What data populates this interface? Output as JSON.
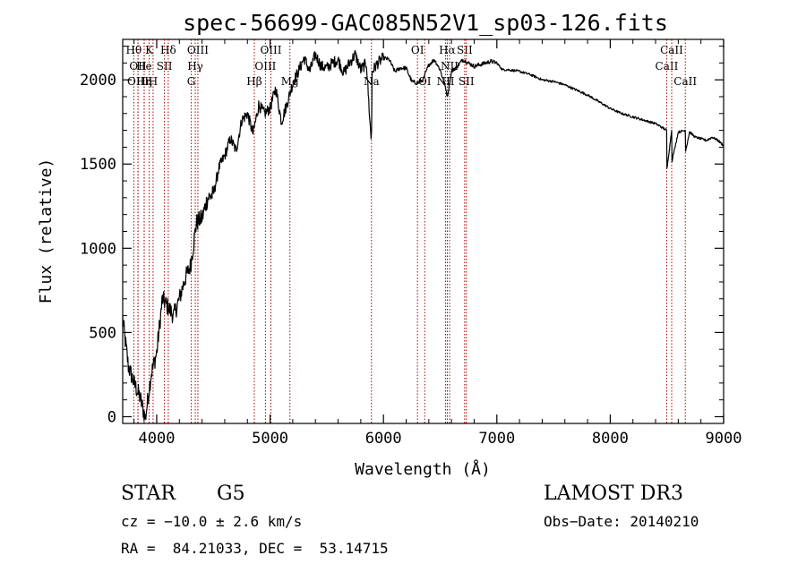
{
  "chart_data": {
    "type": "line",
    "title": "spec-56699-GAC085N52V1_sp03-126.fits",
    "xlabel": "Wavelength (Å)",
    "ylabel": "Flux (relative)",
    "xlim": [
      3700,
      9000
    ],
    "ylim": [
      -40,
      2240
    ],
    "xticks": [
      4000,
      5000,
      6000,
      7000,
      8000,
      9000
    ],
    "yticks": [
      0,
      500,
      1000,
      1500,
      2000
    ],
    "series": [
      {
        "name": "flux",
        "x": [
          3700,
          3750,
          3800,
          3850,
          3900,
          3950,
          4000,
          4050,
          4100,
          4150,
          4200,
          4250,
          4300,
          4350,
          4400,
          4450,
          4500,
          4550,
          4600,
          4650,
          4700,
          4750,
          4800,
          4850,
          4900,
          4950,
          5000,
          5050,
          5100,
          5150,
          5200,
          5250,
          5300,
          5350,
          5400,
          5450,
          5500,
          5550,
          5600,
          5650,
          5700,
          5750,
          5800,
          5850,
          5890,
          5895,
          5900,
          5950,
          6000,
          6050,
          6100,
          6150,
          6200,
          6250,
          6300,
          6350,
          6400,
          6450,
          6500,
          6550,
          6563,
          6600,
          6650,
          6700,
          6750,
          6800,
          6850,
          6900,
          6950,
          7000,
          7050,
          7100,
          7200,
          7300,
          7400,
          7500,
          7600,
          7700,
          7800,
          7900,
          8000,
          8100,
          8200,
          8300,
          8400,
          8450,
          8498,
          8500,
          8542,
          8545,
          8600,
          8662,
          8665,
          8700,
          8750,
          8800,
          8850,
          8900,
          8950,
          9000
        ],
        "y": [
          580,
          300,
          200,
          120,
          -10,
          250,
          380,
          700,
          650,
          600,
          700,
          820,
          900,
          1150,
          1180,
          1300,
          1320,
          1480,
          1550,
          1650,
          1580,
          1760,
          1800,
          1680,
          1850,
          1800,
          1830,
          1950,
          1750,
          1860,
          1980,
          2050,
          2130,
          2050,
          2150,
          2080,
          2070,
          2100,
          2120,
          2040,
          2100,
          2150,
          2060,
          2100,
          1650,
          1700,
          2050,
          2100,
          2130,
          2120,
          2050,
          2070,
          2070,
          1990,
          1980,
          2000,
          2090,
          2120,
          2060,
          1950,
          1900,
          2050,
          2080,
          2120,
          2100,
          2080,
          2090,
          2100,
          2110,
          2100,
          2060,
          2060,
          2050,
          2030,
          2000,
          1990,
          1970,
          1940,
          1910,
          1870,
          1830,
          1800,
          1780,
          1760,
          1740,
          1720,
          1700,
          1470,
          1700,
          1520,
          1690,
          1700,
          1580,
          1690,
          1660,
          1650,
          1640,
          1660,
          1640,
          1610
        ]
      }
    ],
    "lines": [
      {
        "wave": 3798,
        "label": "Hθ",
        "row": 0
      },
      {
        "wave": 3835,
        "label": "OII",
        "row": 1
      },
      {
        "wave": 3835,
        "label": "OIII",
        "row": 2
      },
      {
        "wave": 3889,
        "label": "He",
        "row": 1
      },
      {
        "wave": 3890,
        "label": "Hη",
        "row": 2
      },
      {
        "wave": 3934,
        "label": "K",
        "row": 0
      },
      {
        "wave": 3968,
        "label": "H",
        "row": 2
      },
      {
        "wave": 4068,
        "label": "SII",
        "row": 1
      },
      {
        "wave": 4102,
        "label": "Hδ",
        "row": 0
      },
      {
        "wave": 4305,
        "label": "G",
        "row": 2
      },
      {
        "wave": 4340,
        "label": "Hγ",
        "row": 1
      },
      {
        "wave": 4363,
        "label": "OIII",
        "row": 0
      },
      {
        "wave": 4861,
        "label": "Hβ",
        "row": 2
      },
      {
        "wave": 4959,
        "label": "OIII",
        "row": 1
      },
      {
        "wave": 5007,
        "label": "OIII",
        "row": 0
      },
      {
        "wave": 5175,
        "label": "Mg",
        "row": 2
      },
      {
        "wave": 5894,
        "label": "Na",
        "row": 2
      },
      {
        "wave": 6300,
        "label": "OI",
        "row": 0
      },
      {
        "wave": 6364,
        "label": "OI",
        "row": 2
      },
      {
        "wave": 6548,
        "label": "NII",
        "row": 2
      },
      {
        "wave": 6563,
        "label": "Hα",
        "row": 0
      },
      {
        "wave": 6583,
        "label": "NII",
        "row": 1
      },
      {
        "wave": 6716,
        "label": "SII",
        "row": 0
      },
      {
        "wave": 6731,
        "label": "SII",
        "row": 2
      },
      {
        "wave": 8498,
        "label": "CaII",
        "row": 1
      },
      {
        "wave": 8542,
        "label": "CaII",
        "row": 0
      },
      {
        "wave": 8662,
        "label": "CaII",
        "row": 2
      }
    ],
    "line_color": "#aa0000"
  },
  "info": {
    "object_class": "STAR",
    "subclass": "G5",
    "survey": "LAMOST DR3",
    "cz": "cz = −10.0 ± 2.6 km/s",
    "obs_date": "Obs−Date: 20140210",
    "coords": "RA =  84.21033, DEC =  53.14715"
  }
}
